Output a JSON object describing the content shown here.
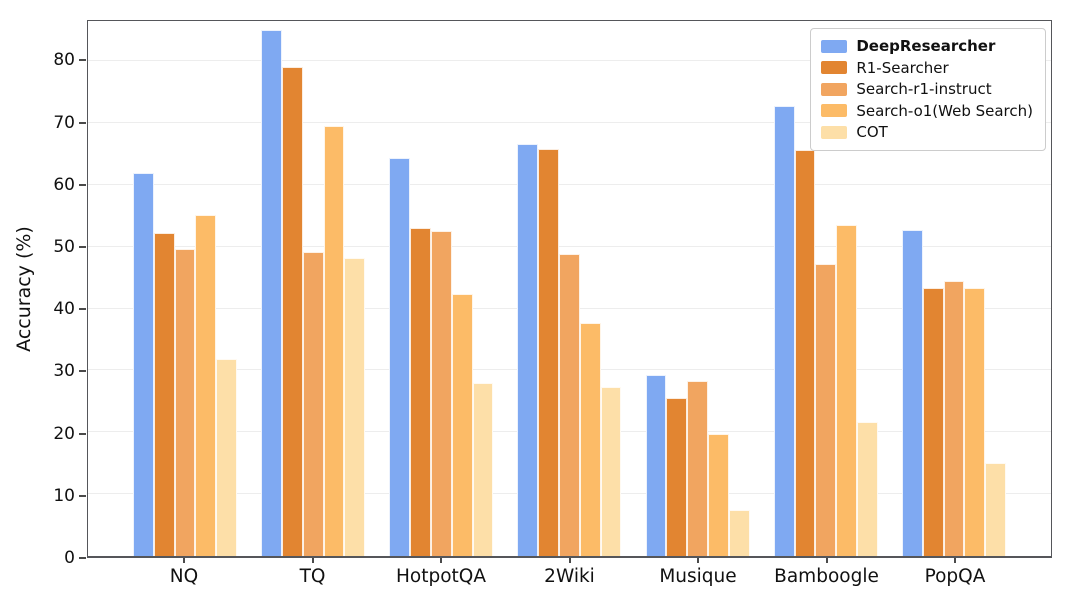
{
  "chart_data": {
    "type": "bar",
    "title": "",
    "xlabel": "",
    "ylabel": "Accuracy (%)",
    "ylim": [
      0,
      86.5
    ],
    "yticks": [
      0,
      10,
      20,
      30,
      40,
      50,
      60,
      70,
      80
    ],
    "grid": "horizontal",
    "grid_color": "#ededed",
    "legend_position": "upper right",
    "categories": [
      "NQ",
      "TQ",
      "HotpotQA",
      "2Wiki",
      "Musique",
      "Bamboogle",
      "PopQA"
    ],
    "series": [
      {
        "name": "DeepResearcher",
        "bold": true,
        "color": "#7FA9F2",
        "values": [
          61.9,
          85.0,
          64.3,
          66.6,
          29.3,
          72.8,
          52.7
        ]
      },
      {
        "name": "R1-Searcher",
        "bold": false,
        "color": "#E28531",
        "values": [
          52.3,
          79.1,
          53.1,
          65.8,
          25.6,
          65.6,
          43.4
        ]
      },
      {
        "name": "Search-r1-instruct",
        "bold": false,
        "color": "#F1A560",
        "values": [
          49.7,
          49.2,
          52.5,
          48.8,
          28.3,
          47.2,
          44.5
        ]
      },
      {
        "name": "Search-o1(Web Search)",
        "bold": false,
        "color": "#FCBB67",
        "values": [
          55.1,
          69.5,
          42.4,
          37.7,
          19.7,
          53.6,
          43.4
        ]
      },
      {
        "name": "COT",
        "bold": false,
        "color": "#FDDFA8",
        "values": [
          31.9,
          48.2,
          27.9,
          27.3,
          7.4,
          21.6,
          15.0
        ]
      }
    ]
  }
}
